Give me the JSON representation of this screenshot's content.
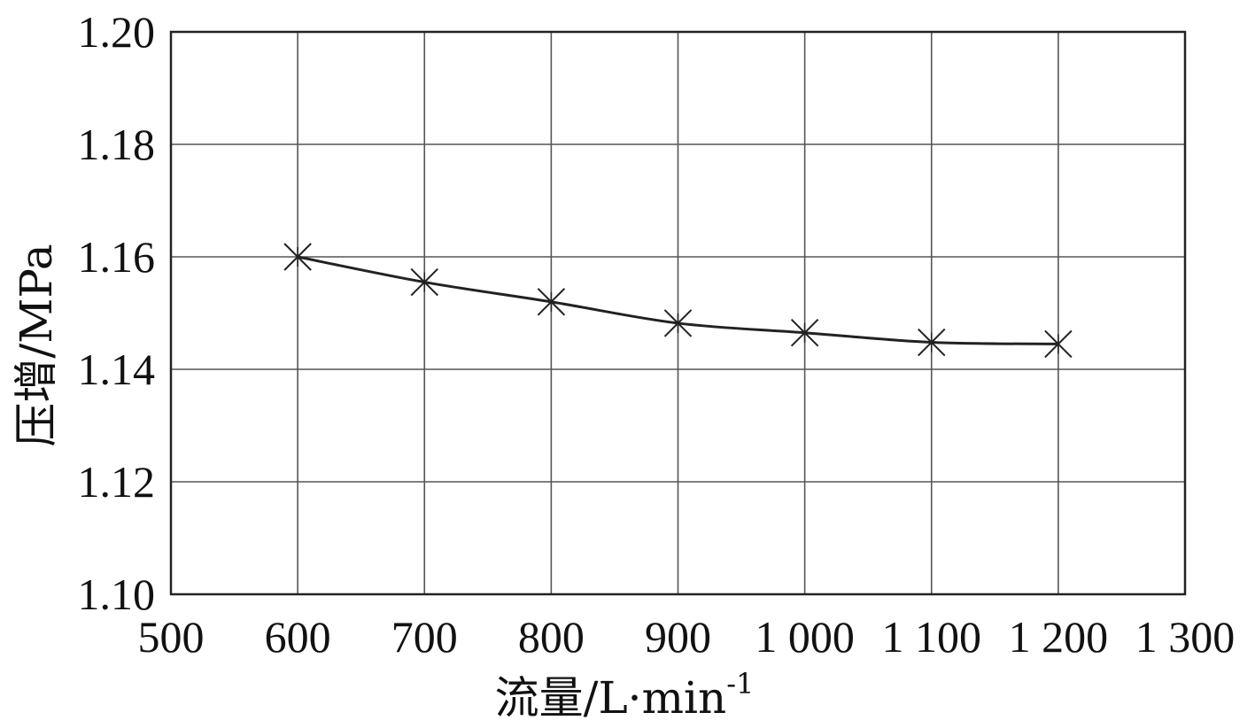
{
  "chart_data": {
    "type": "line",
    "xlabel": "流量/L·min",
    "xlabel_superscript": "-1",
    "ylabel": "压增/MPa",
    "xlim": [
      500,
      1300
    ],
    "ylim": [
      1.1,
      1.2
    ],
    "x_ticks": [
      500,
      600,
      700,
      800,
      900,
      1000,
      1100,
      1200,
      1300
    ],
    "x_tick_labels": [
      "500",
      "600",
      "700",
      "800",
      "900",
      "1 000",
      "1 100",
      "1 200",
      "1 300"
    ],
    "y_ticks": [
      1.1,
      1.12,
      1.14,
      1.16,
      1.18,
      1.2
    ],
    "y_tick_labels": [
      "1.10",
      "1.12",
      "1.14",
      "1.16",
      "1.18",
      "1.20"
    ],
    "grid": true,
    "marker": "asterisk",
    "series": [
      {
        "x": [
          600,
          700,
          800,
          900,
          1000,
          1100,
          1200
        ],
        "y": [
          1.16,
          1.1555,
          1.152,
          1.1482,
          1.1465,
          1.1448,
          1.1445
        ]
      }
    ],
    "colors": {
      "line": "#222222",
      "grid": "#555555",
      "axes": "#222222"
    }
  }
}
